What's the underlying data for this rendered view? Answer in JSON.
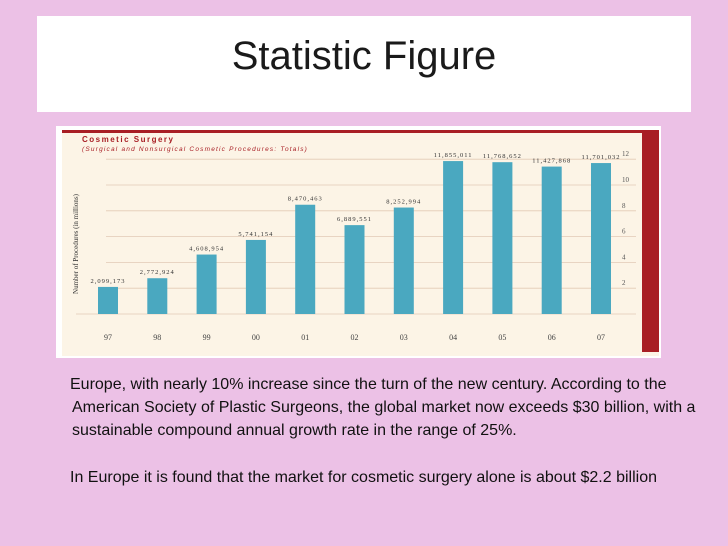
{
  "slide": {
    "title": "Statistic Figure",
    "paragraph1": "Europe, with nearly 10% increase since the turn of the new century. According to the American Society of Plastic Surgeons, the global market now exceeds $30 billion, with a sustainable compound annual growth rate in the range of 25%.",
    "paragraph2": "In Europe it is found that the market for cosmetic surgery alone is about $2.2 billion"
  },
  "colors": {
    "background": "#ecc1e6",
    "chart_panel": "#fcf4e6",
    "bar": "#4aa8c0",
    "header_red": "#a81e24",
    "gridline": "#e2c9b5"
  },
  "chart_data": {
    "type": "bar",
    "title": "Cosmetic Surgery",
    "subtitle": "(Surgical and Nonsurgical Cosmetic Procedures: Totals)",
    "ylabel": "Number of Procedures (in millions)",
    "xlabel": "",
    "categories": [
      "97",
      "98",
      "99",
      "00",
      "01",
      "02",
      "03",
      "04",
      "05",
      "06",
      "07"
    ],
    "values": [
      2.099173,
      2.772924,
      4.608954,
      5.741154,
      8.470463,
      6.889551,
      8.252994,
      11.855011,
      11.768652,
      11.427868,
      11.701032
    ],
    "value_labels": [
      "2,099,173",
      "2,772,924",
      "4,608,954",
      "5,741,154",
      "8,470,463",
      "6,889,551",
      "8,252,994",
      "11,855,011",
      "11,768,652",
      "11,427,868",
      "11,701,032"
    ],
    "yticks": [
      "2",
      "4",
      "6",
      "8",
      "10",
      "12"
    ],
    "ylim": [
      0,
      12.5
    ],
    "grid": true,
    "legend": "none"
  }
}
